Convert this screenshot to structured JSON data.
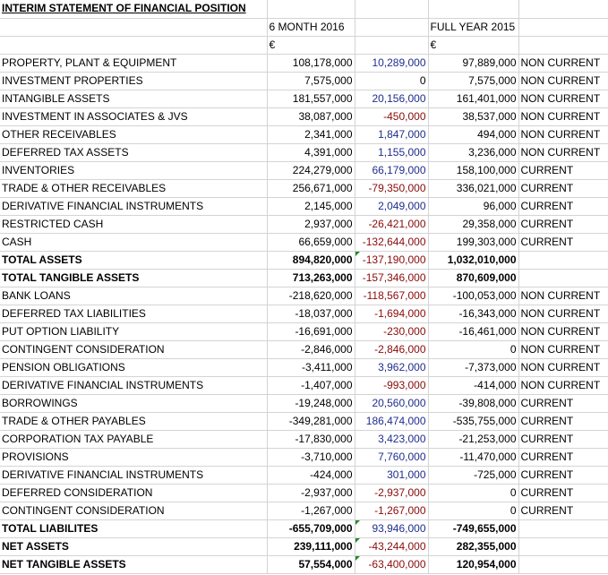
{
  "title": "INTERIM STATEMENT OF FINANCIAL POSITION",
  "headers": {
    "period1": "6 MONTH 2016",
    "period2": "FULL YEAR 2015",
    "currency": "€"
  },
  "rows": [
    {
      "label": "PROPERTY, PLANT & EQUIPMENT",
      "v2016": "108,178,000",
      "change": "10,289,000",
      "v2015": "97,889,000",
      "cls": "NON CURRENT",
      "bold": false,
      "sign": "pos"
    },
    {
      "label": "INVESTMENT PROPERTIES",
      "v2016": "7,575,000",
      "change": "0",
      "v2015": "7,575,000",
      "cls": "NON CURRENT",
      "bold": false,
      "sign": "zero"
    },
    {
      "label": "INTANGIBLE ASSETS",
      "v2016": "181,557,000",
      "change": "20,156,000",
      "v2015": "161,401,000",
      "cls": "NON CURRENT",
      "bold": false,
      "sign": "pos"
    },
    {
      "label": "INVESTMENT IN ASSOCIATES & JVS",
      "v2016": "38,087,000",
      "change": "-450,000",
      "v2015": "38,537,000",
      "cls": "NON CURRENT",
      "bold": false,
      "sign": "neg"
    },
    {
      "label": "OTHER RECEIVABLES",
      "v2016": "2,341,000",
      "change": "1,847,000",
      "v2015": "494,000",
      "cls": "NON CURRENT",
      "bold": false,
      "sign": "pos"
    },
    {
      "label": "DEFERRED TAX ASSETS",
      "v2016": "4,391,000",
      "change": "1,155,000",
      "v2015": "3,236,000",
      "cls": "NON CURRENT",
      "bold": false,
      "sign": "pos"
    },
    {
      "label": "INVENTORIES",
      "v2016": "224,279,000",
      "change": "66,179,000",
      "v2015": "158,100,000",
      "cls": "CURRENT",
      "bold": false,
      "sign": "pos"
    },
    {
      "label": "TRADE & OTHER RECEIVABLES",
      "v2016": "256,671,000",
      "change": "-79,350,000",
      "v2015": "336,021,000",
      "cls": "CURRENT",
      "bold": false,
      "sign": "neg"
    },
    {
      "label": "DERIVATIVE FINANCIAL INSTRUMENTS",
      "v2016": "2,145,000",
      "change": "2,049,000",
      "v2015": "96,000",
      "cls": "CURRENT",
      "bold": false,
      "sign": "pos"
    },
    {
      "label": "RESTRICTED CASH",
      "v2016": "2,937,000",
      "change": "-26,421,000",
      "v2015": "29,358,000",
      "cls": "CURRENT",
      "bold": false,
      "sign": "neg"
    },
    {
      "label": "CASH",
      "v2016": "66,659,000",
      "change": "-132,644,000",
      "v2015": "199,303,000",
      "cls": "CURRENT",
      "bold": false,
      "sign": "neg"
    },
    {
      "label": "TOTAL ASSETS",
      "v2016": "894,820,000",
      "change": "-137,190,000",
      "v2015": "1,032,010,000",
      "cls": "",
      "bold": true,
      "sign": "neg",
      "flag": true
    },
    {
      "label": "TOTAL TANGIBLE ASSETS",
      "v2016": "713,263,000",
      "change": "-157,346,000",
      "v2015": "870,609,000",
      "cls": "",
      "bold": true,
      "sign": "neg"
    },
    {
      "label": "BANK LOANS",
      "v2016": "-218,620,000",
      "change": "-118,567,000",
      "v2015": "-100,053,000",
      "cls": "NON CURRENT",
      "bold": false,
      "sign": "neg"
    },
    {
      "label": "DEFERRED TAX LIABILITIES",
      "v2016": "-18,037,000",
      "change": "-1,694,000",
      "v2015": "-16,343,000",
      "cls": "NON CURRENT",
      "bold": false,
      "sign": "neg"
    },
    {
      "label": "PUT OPTION LIABILITY",
      "v2016": "-16,691,000",
      "change": "-230,000",
      "v2015": "-16,461,000",
      "cls": "NON CURRENT",
      "bold": false,
      "sign": "neg"
    },
    {
      "label": "CONTINGENT CONSIDERATION",
      "v2016": "-2,846,000",
      "change": "-2,846,000",
      "v2015": "0",
      "cls": "NON CURRENT",
      "bold": false,
      "sign": "neg"
    },
    {
      "label": "PENSION OBLIGATIONS",
      "v2016": "-3,411,000",
      "change": "3,962,000",
      "v2015": "-7,373,000",
      "cls": "NON CURRENT",
      "bold": false,
      "sign": "pos"
    },
    {
      "label": "DERIVATIVE FINANCIAL INSTRUMENTS",
      "v2016": "-1,407,000",
      "change": "-993,000",
      "v2015": "-414,000",
      "cls": "NON CURRENT",
      "bold": false,
      "sign": "neg"
    },
    {
      "label": "BORROWINGS",
      "v2016": "-19,248,000",
      "change": "20,560,000",
      "v2015": "-39,808,000",
      "cls": "CURRENT",
      "bold": false,
      "sign": "pos"
    },
    {
      "label": "TRADE & OTHER PAYABLES",
      "v2016": "-349,281,000",
      "change": "186,474,000",
      "v2015": "-535,755,000",
      "cls": "CURRENT",
      "bold": false,
      "sign": "pos"
    },
    {
      "label": "CORPORATION TAX PAYABLE",
      "v2016": "-17,830,000",
      "change": "3,423,000",
      "v2015": "-21,253,000",
      "cls": "CURRENT",
      "bold": false,
      "sign": "pos"
    },
    {
      "label": "PROVISIONS",
      "v2016": "-3,710,000",
      "change": "7,760,000",
      "v2015": "-11,470,000",
      "cls": "CURRENT",
      "bold": false,
      "sign": "pos"
    },
    {
      "label": "DERIVATIVE FINANCIAL INSTRUMENTS",
      "v2016": "-424,000",
      "change": "301,000",
      "v2015": "-725,000",
      "cls": "CURRENT",
      "bold": false,
      "sign": "pos"
    },
    {
      "label": "DEFERRED CONSIDERATION",
      "v2016": "-2,937,000",
      "change": "-2,937,000",
      "v2015": "0",
      "cls": "CURRENT",
      "bold": false,
      "sign": "neg"
    },
    {
      "label": "CONTINGENT CONSIDERATION",
      "v2016": "-1,267,000",
      "change": "-1,267,000",
      "v2015": "0",
      "cls": "CURRENT",
      "bold": false,
      "sign": "neg"
    },
    {
      "label": "TOTAL LIABILITES",
      "v2016": "-655,709,000",
      "change": "93,946,000",
      "v2015": "-749,655,000",
      "cls": "",
      "bold": true,
      "sign": "pos",
      "flag": true
    },
    {
      "label": "NET ASSETS",
      "v2016": "239,111,000",
      "change": "-43,244,000",
      "v2015": "282,355,000",
      "cls": "",
      "bold": true,
      "sign": "neg",
      "flag": true
    },
    {
      "label": "NET TANGIBLE ASSETS",
      "v2016": "57,554,000",
      "change": "-63,400,000",
      "v2015": "120,954,000",
      "cls": "",
      "bold": true,
      "sign": "neg",
      "flag": true
    }
  ],
  "colors": {
    "positive_change": "#1f2d8f",
    "negative_change": "#8b0a0a",
    "grid": "#d4d4d4",
    "comment_flag": "#1e8a2a"
  }
}
